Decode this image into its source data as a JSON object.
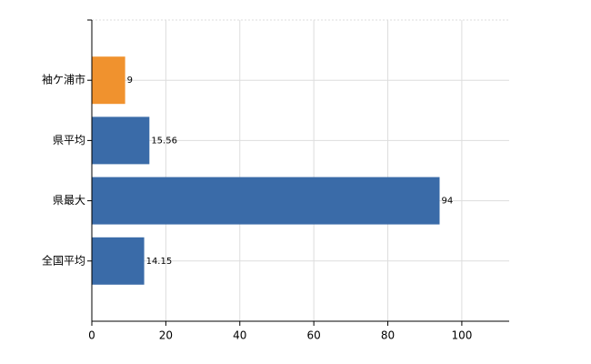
{
  "chart_data": {
    "type": "barh",
    "categories": [
      "袖ケ浦市",
      "県平均",
      "県最大",
      "全国平均"
    ],
    "values": [
      9,
      15.56,
      94,
      14.15
    ],
    "colors": [
      "#f0922e",
      "#3a6ba8",
      "#3a6ba8",
      "#3a6ba8"
    ],
    "xlim": [
      0,
      112.8
    ],
    "xticks": [
      0,
      20,
      40,
      60,
      80,
      100
    ],
    "grid": true
  }
}
